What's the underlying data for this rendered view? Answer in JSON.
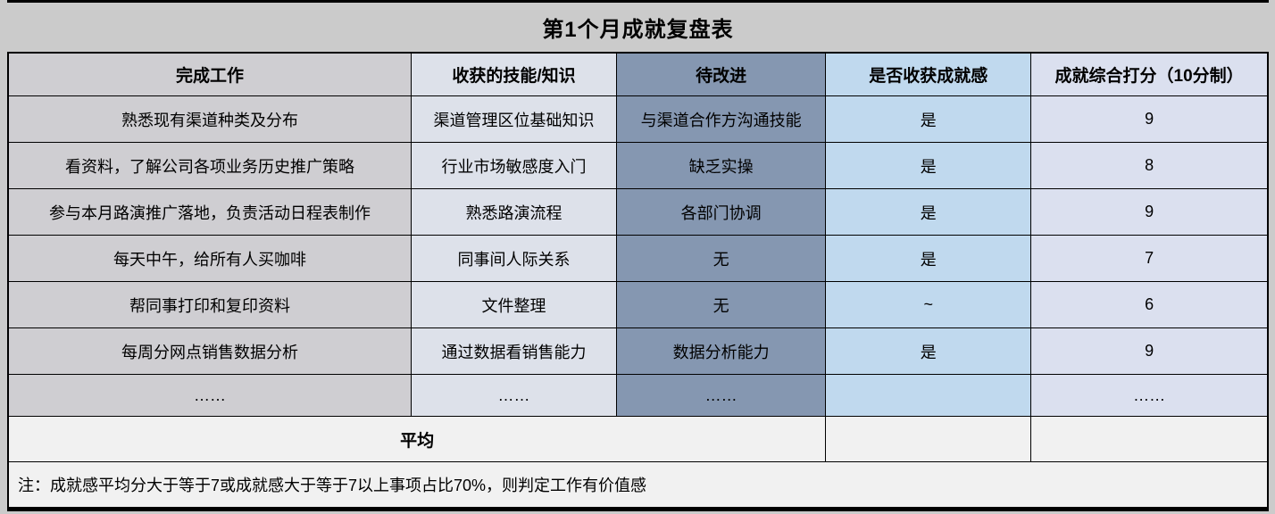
{
  "title": "第1个月成就复盘表",
  "headers": {
    "completed_work": "完成工作",
    "skills_gained": "收获的技能/知识",
    "to_improve": "待改进",
    "achievement_felt": "是否收获成就感",
    "overall_score": "成就综合打分（10分制）"
  },
  "rows": [
    [
      "熟悉现有渠道种类及分布",
      "渠道管理区位基础知识",
      "与渠道合作方沟通技能",
      "是",
      "9"
    ],
    [
      "看资料，了解公司各项业务历史推广策略",
      "行业市场敏感度入门",
      "缺乏实操",
      "是",
      "8"
    ],
    [
      "参与本月路演推广落地，负责活动日程表制作",
      "熟悉路演流程",
      "各部门协调",
      "是",
      "9"
    ],
    [
      "每天中午，给所有人买咖啡",
      "同事间人际关系",
      "无",
      "是",
      "7"
    ],
    [
      "帮同事打印和复印资料",
      "文件整理",
      "无",
      "~",
      "6"
    ],
    [
      "每周分网点销售数据分析",
      "通过数据看销售能力",
      "数据分析能力",
      "是",
      "9"
    ],
    [
      "……",
      "……",
      "……",
      "",
      "……"
    ]
  ],
  "average_row": {
    "label": "平均",
    "achievement_cell": "",
    "score_cell": ""
  },
  "footnote": "注：成就感平均分大于等于7或成就感大于等于7以上事项占比70%，则判定工作有价值感",
  "colors": {
    "page_bg": "#cbcbcb",
    "completed_work_bg": "#cfced2",
    "skills_gained_bg": "#dde1ea",
    "to_improve_bg": "#8597b1",
    "achievement_bg": "#c0d9ee",
    "score_bg": "#dbe0ef",
    "summary_bg": "#f1f1f1",
    "border": "#000000"
  }
}
